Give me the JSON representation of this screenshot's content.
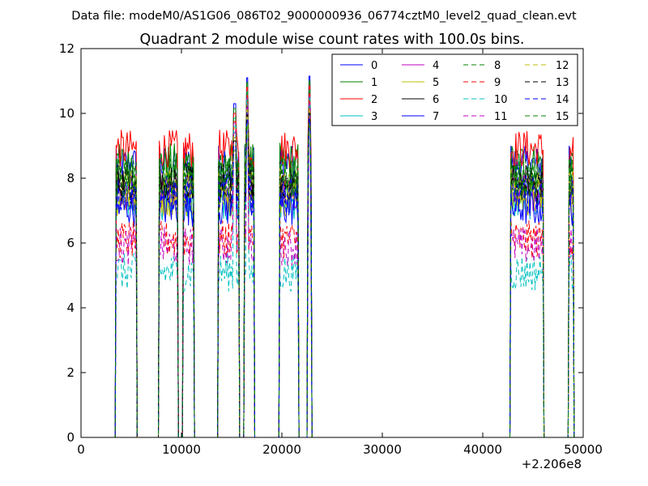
{
  "header": {
    "file_label": "Data file: modeM0/AS1G06_086T02_9000000936_06774cztM0_level2_quad_clean.evt"
  },
  "chart_data": {
    "type": "line",
    "title": "Quadrant 2 module wise count rates with 100.0s bins.",
    "xlabel": "",
    "ylabel": "",
    "xlim": [
      0,
      50000
    ],
    "ylim": [
      0,
      12
    ],
    "x_ticks": [
      0,
      10000,
      20000,
      30000,
      40000,
      50000
    ],
    "y_ticks": [
      0,
      2,
      4,
      6,
      8,
      10,
      12
    ],
    "x_offset_label": "+2.206e8",
    "grid": false,
    "legend": {
      "placement": "top-right",
      "columns": 4
    },
    "segments": [
      {
        "start": 3500,
        "end": 5500
      },
      {
        "start": 7800,
        "end": 9600
      },
      {
        "start": 10200,
        "end": 11200
      },
      {
        "start": 13700,
        "end": 15700
      },
      {
        "start": 16300,
        "end": 17200
      },
      {
        "start": 19800,
        "end": 21600
      },
      {
        "start": 22600,
        "end": 22900
      },
      {
        "start": 42800,
        "end": 46000
      },
      {
        "start": 48600,
        "end": 49000
      }
    ],
    "spikes": [
      {
        "x": 16550,
        "peak": 11.1
      },
      {
        "x": 22750,
        "peak": 11.15
      },
      {
        "x": 15300,
        "peak": 10.3
      }
    ],
    "series": [
      {
        "name": "0",
        "color": "#0000ff",
        "dash": false,
        "level": 8.4
      },
      {
        "name": "1",
        "color": "#008000",
        "dash": false,
        "level": 8.5
      },
      {
        "name": "2",
        "color": "#ff0000",
        "dash": false,
        "level": 8.9
      },
      {
        "name": "3",
        "color": "#00bfbf",
        "dash": false,
        "level": 7.3
      },
      {
        "name": "4",
        "color": "#bf00bf",
        "dash": false,
        "level": 7.6
      },
      {
        "name": "5",
        "color": "#bfbf00",
        "dash": false,
        "level": 7.4
      },
      {
        "name": "6",
        "color": "#000000",
        "dash": false,
        "level": 7.9
      },
      {
        "name": "7",
        "color": "#0000ff",
        "dash": false,
        "level": 7.1
      },
      {
        "name": "8",
        "color": "#008000",
        "dash": true,
        "level": 8.2
      },
      {
        "name": "9",
        "color": "#ff0000",
        "dash": true,
        "level": 6.1
      },
      {
        "name": "10",
        "color": "#00bfbf",
        "dash": true,
        "level": 5.1
      },
      {
        "name": "11",
        "color": "#bf00bf",
        "dash": true,
        "level": 5.9
      },
      {
        "name": "12",
        "color": "#bfbf00",
        "dash": true,
        "level": 7.7
      },
      {
        "name": "13",
        "color": "#000000",
        "dash": true,
        "level": 7.8
      },
      {
        "name": "14",
        "color": "#0000ff",
        "dash": true,
        "level": 7.5
      },
      {
        "name": "15",
        "color": "#008000",
        "dash": true,
        "level": 8.0
      }
    ]
  }
}
